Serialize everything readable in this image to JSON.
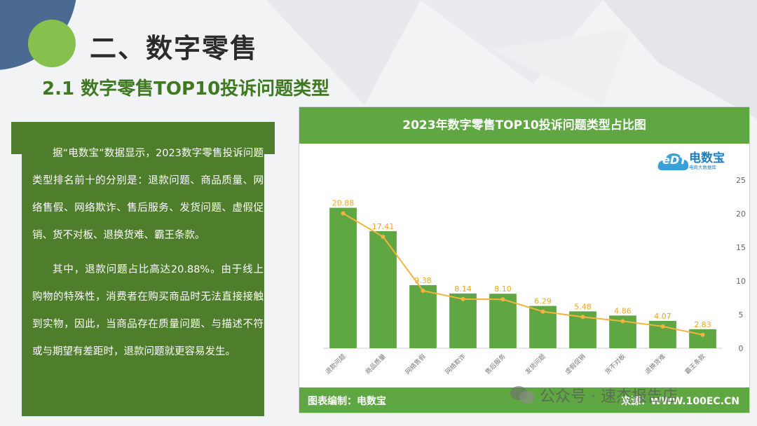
{
  "title": "二、数字零售",
  "subtitle": "2.1 数字零售TOP10投诉问题类型",
  "body_paragraphs": [
    "据“电数宝”数据显示，2023数字零售投诉问题类型排名前十的分别是：退款问题、商品质量、网络售假、网络欺诈、售后服务、发货问题、虚假促销、货不对板、退换货难、霸王条款。",
    "其中，退款问题占比高达20.88%。由于线上购物的特殊性，消费者在购买商品时无法直接接触到实物，因此，当商品存在质量问题、与描述不符或与期望有差距时，退款问题就更容易发生。"
  ],
  "logo": {
    "name": "电数宝",
    "sub": "电商大数据库",
    "mark": "eDT"
  },
  "footer": {
    "left": "图表编制：电数宝",
    "right": "来源：WWW.100EC.CN"
  },
  "watermark": "公众号 · 速杰报告店",
  "colors": {
    "bar": "#5fa743",
    "line": "#f5b33d",
    "label": "#f0a52a",
    "header": "#5fa743",
    "panel": "#4e7d2b"
  },
  "chart_data": {
    "type": "bar",
    "title": "2023年数字零售TOP10投诉问题类型占比图",
    "categories": [
      "退款问题",
      "商品质量",
      "网络售假",
      "网络欺诈",
      "售后服务",
      "发货问题",
      "虚假促销",
      "货不对板",
      "退换货难",
      "霸王条款"
    ],
    "values": [
      20.88,
      17.41,
      9.38,
      8.14,
      8.1,
      6.29,
      5.48,
      4.86,
      4.07,
      2.83
    ],
    "overlay_line": true,
    "yaxis_position": "right",
    "yticks": [
      0,
      5,
      10,
      15,
      20,
      25
    ],
    "ylim": [
      0,
      25
    ],
    "grid": false,
    "xlabel": "",
    "ylabel": ""
  }
}
